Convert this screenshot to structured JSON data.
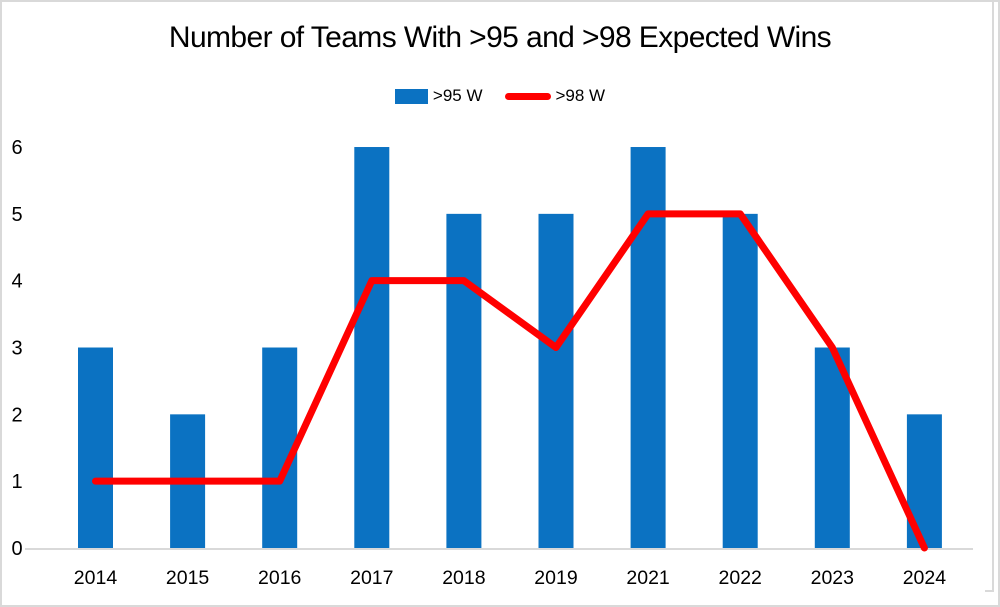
{
  "chart_data": {
    "type": "bar+line",
    "title": "Number of Teams With >95 and >98 Expected Wins",
    "categories": [
      "2014",
      "2015",
      "2016",
      "2017",
      "2018",
      "2019",
      "2021",
      "2022",
      "2023",
      "2024"
    ],
    "series": [
      {
        "name": ">95 W",
        "type": "bar",
        "color": "#0b72c2",
        "values": [
          3,
          2,
          3,
          6,
          5,
          5,
          6,
          5,
          3,
          2
        ]
      },
      {
        "name": ">98 W",
        "type": "line",
        "color": "#ff0000",
        "values": [
          1,
          1,
          1,
          4,
          4,
          3,
          5,
          5,
          3,
          0
        ]
      }
    ],
    "xlabel": "",
    "ylabel": "",
    "ylim": [
      0,
      6
    ],
    "yticks": [
      0,
      1,
      2,
      3,
      4,
      5,
      6
    ],
    "grid": false,
    "legend_position": "top-center",
    "axis_color": "#d9d9d9",
    "text_color": "#000000",
    "background_color": "#ffffff"
  }
}
